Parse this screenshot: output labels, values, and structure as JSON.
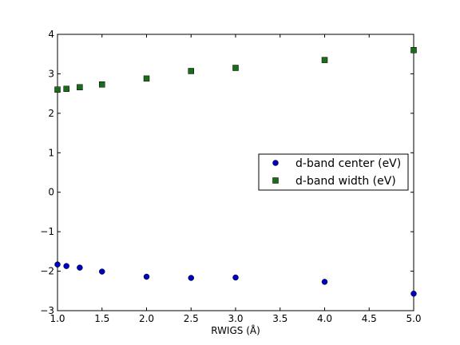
{
  "chart_data": {
    "type": "scatter",
    "title": "",
    "xlabel": "RWIGS (Å)",
    "ylabel": "",
    "xlim": [
      1.0,
      5.0
    ],
    "ylim": [
      -3,
      4
    ],
    "x_ticks": [
      "1.0",
      "1.5",
      "2.0",
      "2.5",
      "3.0",
      "3.5",
      "4.0",
      "4.5",
      "5.0"
    ],
    "y_ticks": [
      "−3",
      "−2",
      "−1",
      "0",
      "1",
      "2",
      "3",
      "4"
    ],
    "grid": false,
    "legend_position": "center-right",
    "series": [
      {
        "name": "d-band center (eV)",
        "marker": "circle",
        "color": "#0000bf",
        "points": [
          [
            1.0,
            -1.83
          ],
          [
            1.1,
            -1.87
          ],
          [
            1.25,
            -1.91
          ],
          [
            1.5,
            -2.01
          ],
          [
            2.0,
            -2.14
          ],
          [
            2.5,
            -2.17
          ],
          [
            3.0,
            -2.16
          ],
          [
            4.0,
            -2.27
          ],
          [
            5.0,
            -2.57
          ]
        ]
      },
      {
        "name": "d-band width (eV)",
        "marker": "square",
        "color": "#1a6b1a",
        "points": [
          [
            1.0,
            2.6
          ],
          [
            1.1,
            2.62
          ],
          [
            1.25,
            2.66
          ],
          [
            1.5,
            2.73
          ],
          [
            2.0,
            2.88
          ],
          [
            2.5,
            3.07
          ],
          [
            3.0,
            3.15
          ],
          [
            4.0,
            3.35
          ],
          [
            5.0,
            3.6
          ]
        ]
      }
    ]
  }
}
